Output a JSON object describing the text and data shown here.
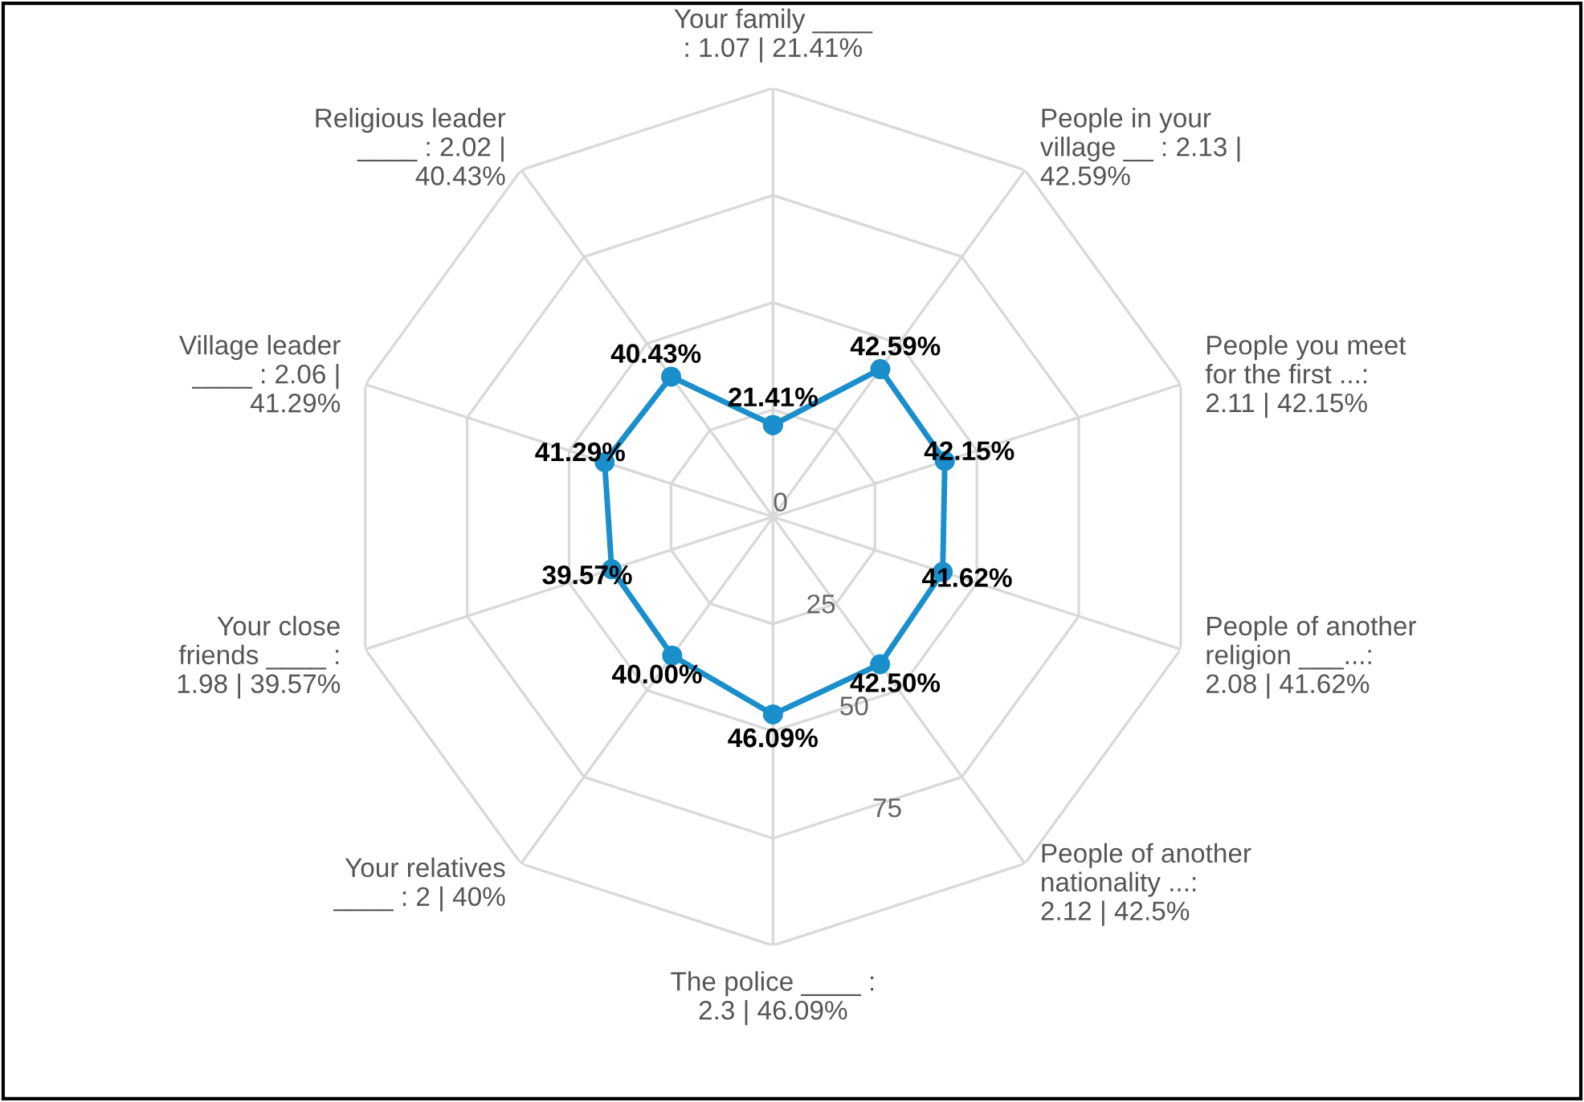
{
  "chart_data": {
    "type": "radar",
    "categories": [
      "Your family ____\n: 1.07 | 21.41%",
      "People in your\nvillage __ : 2.13 |\n42.59%",
      "People you meet\nfor the first ...:\n2.11 | 42.15%",
      "People of another\nreligion ___...:\n2.08 | 41.62%",
      "People of another\nnationality ...:\n2.12 | 42.5%",
      "The police ____ :\n2.3 | 46.09%",
      "Your relatives\n____ : 2 | 40%",
      "Your close\nfriends ____ :\n1.98 | 39.57%",
      "Village leader\n____ : 2.06 |\n41.29%",
      "Religious leader\n____ : 2.02 |\n40.43%"
    ],
    "series": [
      {
        "color": "#1a8fcb",
        "values": [
          21.41,
          42.59,
          42.15,
          41.62,
          42.5,
          46.09,
          40.0,
          39.57,
          41.29,
          40.43
        ],
        "value_labels": [
          "21.41%",
          "42.59%",
          "42.15%",
          "41.62%",
          "42.50%",
          "46.09%",
          "40.00%",
          "39.57%",
          "41.29%",
          "40.43%"
        ]
      }
    ],
    "ylim": [
      0,
      100
    ],
    "yticks": [
      0,
      25,
      50,
      75
    ],
    "grid": true,
    "marker": "circle",
    "legend": false
  }
}
